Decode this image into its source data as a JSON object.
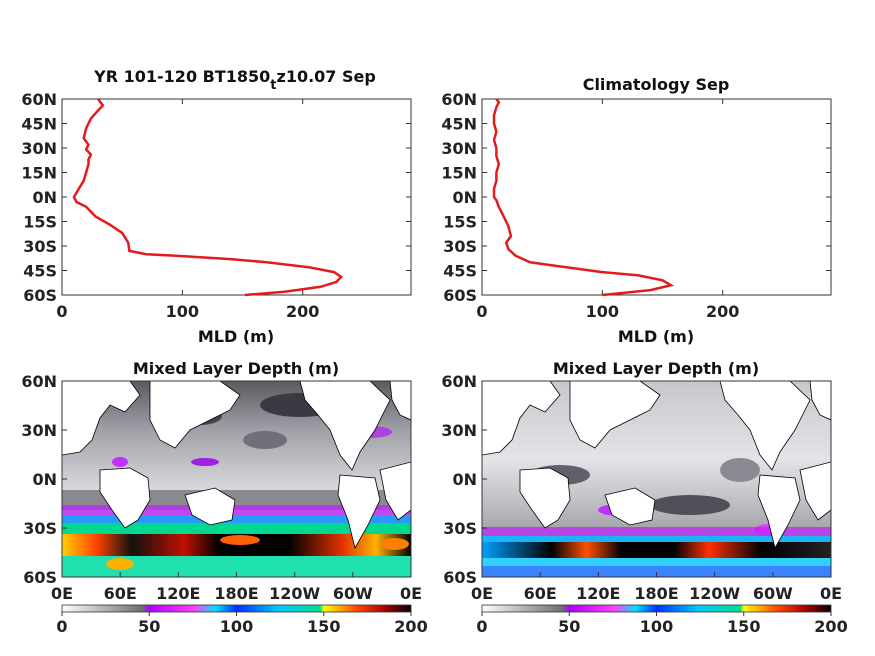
{
  "chart_data": [
    {
      "type": "line",
      "title": "YR 101-120 BT1850",
      "title_subscript": "t",
      "title_suffix": "z10.07 Sep",
      "xlabel": "MLD (m)",
      "ylabel": "",
      "xlim": [
        0,
        290
      ],
      "ylim": [
        -60,
        60
      ],
      "xticks": [
        "0",
        "100",
        "200"
      ],
      "xtick_values": [
        0,
        100,
        200
      ],
      "yticks": [
        "60N",
        "45N",
        "30N",
        "15N",
        "0N",
        "15S",
        "30S",
        "45S",
        "60S"
      ],
      "ytick_values": [
        60,
        45,
        30,
        15,
        0,
        -15,
        -30,
        -45,
        -60
      ],
      "line_color": "#e41a1c",
      "series": [
        {
          "x": [
            152,
            185,
            215,
            228,
            232,
            226,
            205,
            170,
            140,
            95,
            70,
            56,
            55,
            50,
            40,
            28,
            20,
            12,
            10,
            14,
            18,
            20,
            22,
            22,
            24,
            20,
            22,
            18,
            20,
            24,
            30,
            34,
            30
          ],
          "y": [
            -60,
            -58,
            -55,
            -52,
            -49,
            -46,
            -43,
            -40,
            -38,
            -36,
            -35,
            -33,
            -28,
            -22,
            -17,
            -12,
            -6,
            -3,
            0,
            5,
            10,
            15,
            20,
            23,
            26,
            29,
            32,
            36,
            42,
            48,
            53,
            56,
            60
          ]
        }
      ]
    },
    {
      "type": "line",
      "title": "Climatology Sep",
      "xlabel": "MLD (m)",
      "ylabel": "",
      "xlim": [
        0,
        290
      ],
      "ylim": [
        -60,
        60
      ],
      "xticks": [
        "0",
        "100",
        "200"
      ],
      "xtick_values": [
        0,
        100,
        200
      ],
      "yticks": [
        "60N",
        "45N",
        "30N",
        "15N",
        "0N",
        "15S",
        "30S",
        "45S",
        "60S"
      ],
      "ytick_values": [
        60,
        45,
        30,
        15,
        0,
        -15,
        -30,
        -45,
        -60
      ],
      "line_color": "#e41a1c",
      "series": [
        {
          "x": [
            100,
            140,
            157,
            150,
            130,
            100,
            80,
            60,
            40,
            28,
            22,
            20,
            24,
            22,
            18,
            14,
            12,
            10,
            10,
            12,
            12,
            14,
            12,
            12,
            10,
            12,
            10,
            10,
            12,
            14,
            12
          ],
          "y": [
            -60,
            -57,
            -54,
            -51,
            -48,
            -46,
            -44,
            -42,
            -40,
            -36,
            -32,
            -28,
            -24,
            -18,
            -12,
            -6,
            -2,
            0,
            5,
            10,
            15,
            20,
            25,
            30,
            35,
            40,
            45,
            50,
            55,
            58,
            60
          ]
        }
      ]
    },
    {
      "type": "heatmap",
      "title": "Mixed Layer Depth (m)",
      "xticks": [
        "0E",
        "60E",
        "120E",
        "180E",
        "120W",
        "60W",
        "0E"
      ],
      "yticks": [
        "60N",
        "30N",
        "0N",
        "30S",
        "60S"
      ],
      "ylim": [
        -60,
        60
      ],
      "colorbar": {
        "ticks": [
          "0",
          "50",
          "100",
          "150",
          "200"
        ],
        "range": [
          0,
          200
        ],
        "colors": [
          "#ffffff",
          "#6e6e74",
          "#c000ff",
          "#ff40ff",
          "#00ffff",
          "#0040ff",
          "#00e0a0",
          "#ffff00",
          "#ff5000",
          "#900000",
          "#000000"
        ]
      }
    },
    {
      "type": "heatmap",
      "title": "Mixed Layer Depth (m)",
      "xticks": [
        "0E",
        "60E",
        "120E",
        "180E",
        "120W",
        "60W",
        "0E"
      ],
      "yticks": [
        "60N",
        "30N",
        "0N",
        "30S",
        "60S"
      ],
      "ylim": [
        -60,
        60
      ],
      "colorbar": {
        "ticks": [
          "0",
          "50",
          "100",
          "150",
          "200"
        ],
        "range": [
          0,
          200
        ],
        "colors": [
          "#ffffff",
          "#6e6e74",
          "#c000ff",
          "#ff40ff",
          "#00ffff",
          "#0040ff",
          "#00e0a0",
          "#ffff00",
          "#ff5000",
          "#900000",
          "#000000"
        ]
      }
    }
  ]
}
